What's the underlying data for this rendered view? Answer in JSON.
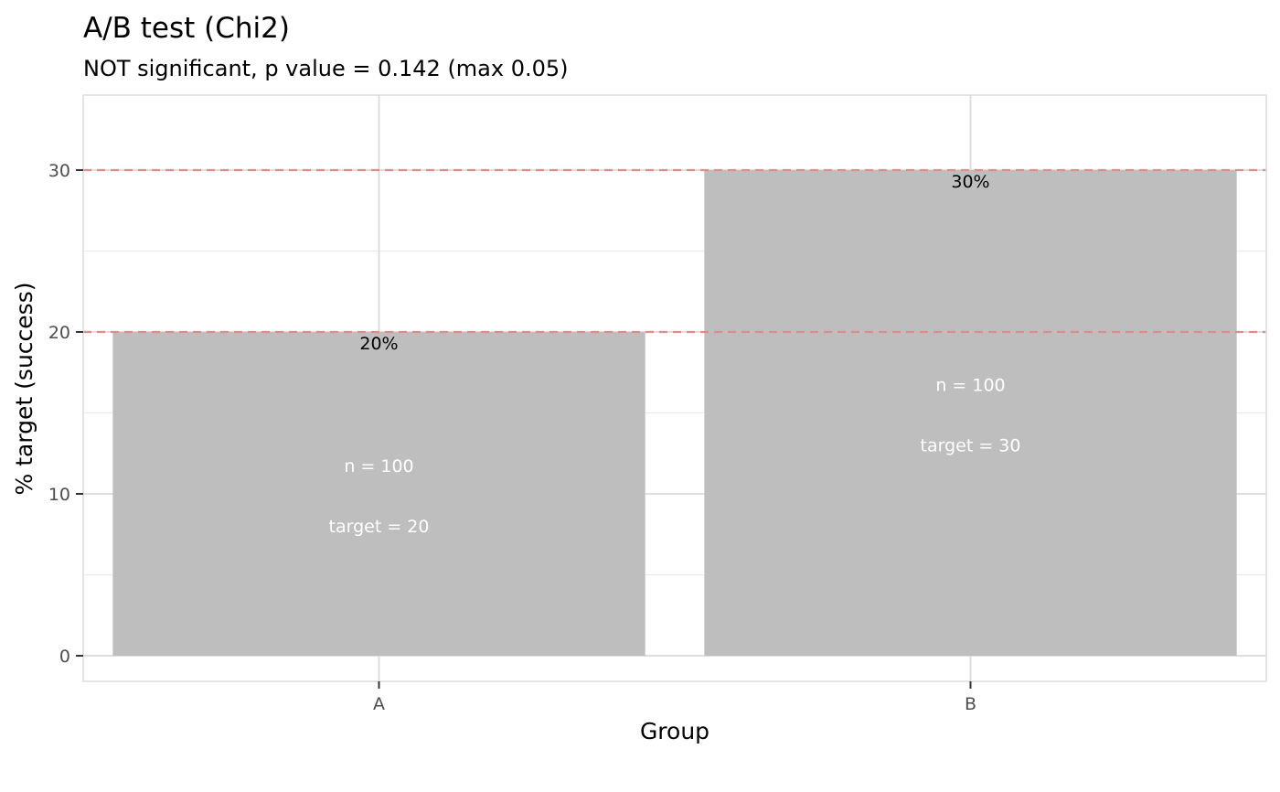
{
  "chart_data": {
    "type": "bar",
    "title": "A/B test (Chi2)",
    "subtitle": "NOT significant, p value = 0.142 (max 0.05)",
    "xlabel": "Group",
    "ylabel": "% target (success)",
    "categories": [
      "A",
      "B"
    ],
    "values": [
      20,
      30
    ],
    "value_labels": [
      "20%",
      "30%"
    ],
    "n_labels": [
      "n = 100",
      "n = 100"
    ],
    "target_labels": [
      "target = 20",
      "target = 30"
    ],
    "ylim": [
      -1.6,
      34.5
    ],
    "yticks": [
      0,
      10,
      20,
      30
    ],
    "reference_lines": [
      20,
      30
    ],
    "grid": true,
    "legend": "none",
    "colors": {
      "bar": "#bebebe",
      "reference_line": "#e08b88",
      "grid_major": "#dedede",
      "grid_minor": "#ececec",
      "panel_border": "#dcdcdc"
    }
  }
}
